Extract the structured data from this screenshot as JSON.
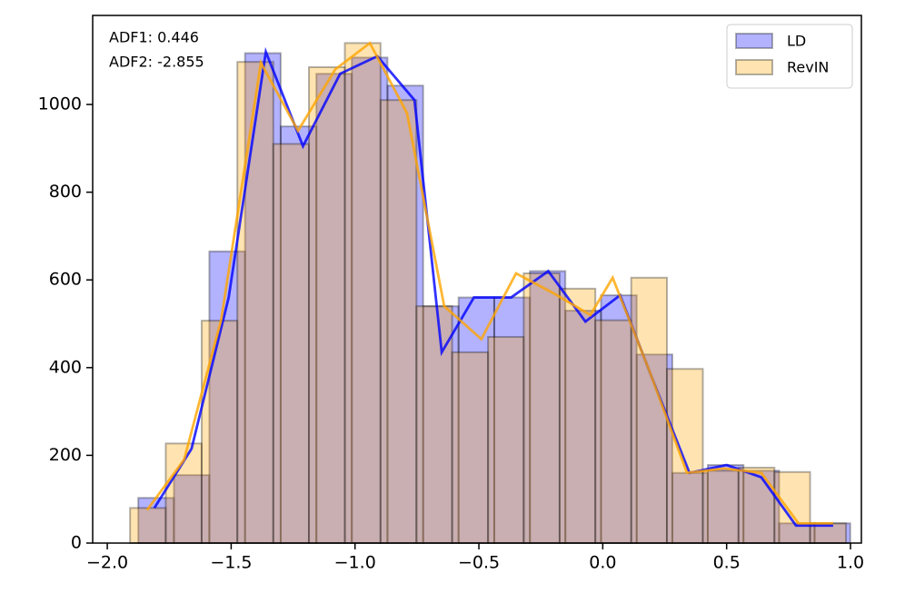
{
  "chart_data": {
    "type": "histogram",
    "xlim": [
      -2.059,
      1.044
    ],
    "ylim": [
      0,
      1203
    ],
    "xticks": [
      {
        "value": -2.0,
        "label": "−2.0"
      },
      {
        "value": -1.5,
        "label": "−1.5"
      },
      {
        "value": -1.0,
        "label": "−1.0"
      },
      {
        "value": -0.5,
        "label": "−0.5"
      },
      {
        "value": 0.0,
        "label": "0.0"
      },
      {
        "value": 0.5,
        "label": "0.5"
      },
      {
        "value": 1.0,
        "label": "1.0"
      }
    ],
    "yticks": [
      0,
      200,
      400,
      600,
      800,
      1000
    ],
    "legend": "upper right",
    "series": [
      {
        "name": "LD",
        "color": "#0000ff",
        "bins": [
          -1.875,
          -1.731,
          -1.588,
          -1.444,
          -1.3,
          -1.156,
          -1.013,
          -0.869,
          -0.725,
          -0.582,
          -0.438,
          -0.294,
          -0.151,
          -0.007,
          0.137,
          0.281,
          0.424,
          0.568,
          0.712,
          0.855,
          0.999
        ],
        "values": [
          103,
          155,
          665,
          1117,
          950,
          1070,
          1107,
          1043,
          540,
          560,
          560,
          620,
          530,
          565,
          430,
          160,
          178,
          165,
          45,
          45
        ]
      },
      {
        "name": "RevIN",
        "color": "#ffa500",
        "bins": [
          -1.908,
          -1.764,
          -1.619,
          -1.475,
          -1.33,
          -1.186,
          -1.041,
          -0.897,
          -0.752,
          -0.608,
          -0.463,
          -0.319,
          -0.174,
          -0.03,
          0.115,
          0.259,
          0.404,
          0.548,
          0.693,
          0.837,
          0.982
        ],
        "values": [
          80,
          227,
          507,
          1097,
          910,
          1085,
          1140,
          1010,
          540,
          435,
          470,
          615,
          580,
          508,
          605,
          397,
          165,
          172,
          162,
          45
        ]
      }
    ],
    "lines": [
      {
        "color": "#0000ff",
        "x": [
          -1.81,
          -1.66,
          -1.51,
          -1.36,
          -1.21,
          -1.06,
          -0.91,
          -0.76,
          -0.65,
          -0.52,
          -0.37,
          -0.22,
          -0.07,
          0.07,
          0.2,
          0.35,
          0.5,
          0.64,
          0.78,
          0.93
        ],
        "values": [
          80,
          215,
          560,
          1120,
          905,
          1070,
          1110,
          1010,
          435,
          560,
          560,
          620,
          505,
          565,
          375,
          160,
          178,
          150,
          40,
          40
        ]
      },
      {
        "color": "#ffa500",
        "x": [
          -1.84,
          -1.69,
          -1.54,
          -1.38,
          -1.23,
          -1.08,
          -0.94,
          -0.79,
          -0.64,
          -0.49,
          -0.35,
          -0.2,
          -0.05,
          0.04,
          0.19,
          0.34,
          0.49,
          0.64,
          0.79,
          0.93
        ],
        "values": [
          75,
          190,
          510,
          1095,
          940,
          1080,
          1140,
          980,
          540,
          465,
          615,
          570,
          520,
          605,
          390,
          160,
          170,
          160,
          45,
          45
        ]
      }
    ],
    "annotations": [
      {
        "text": "ADF1: 0.446",
        "color": "#0000ff"
      },
      {
        "text": "ADF2: -2.855",
        "color": "#ffa500"
      }
    ]
  }
}
